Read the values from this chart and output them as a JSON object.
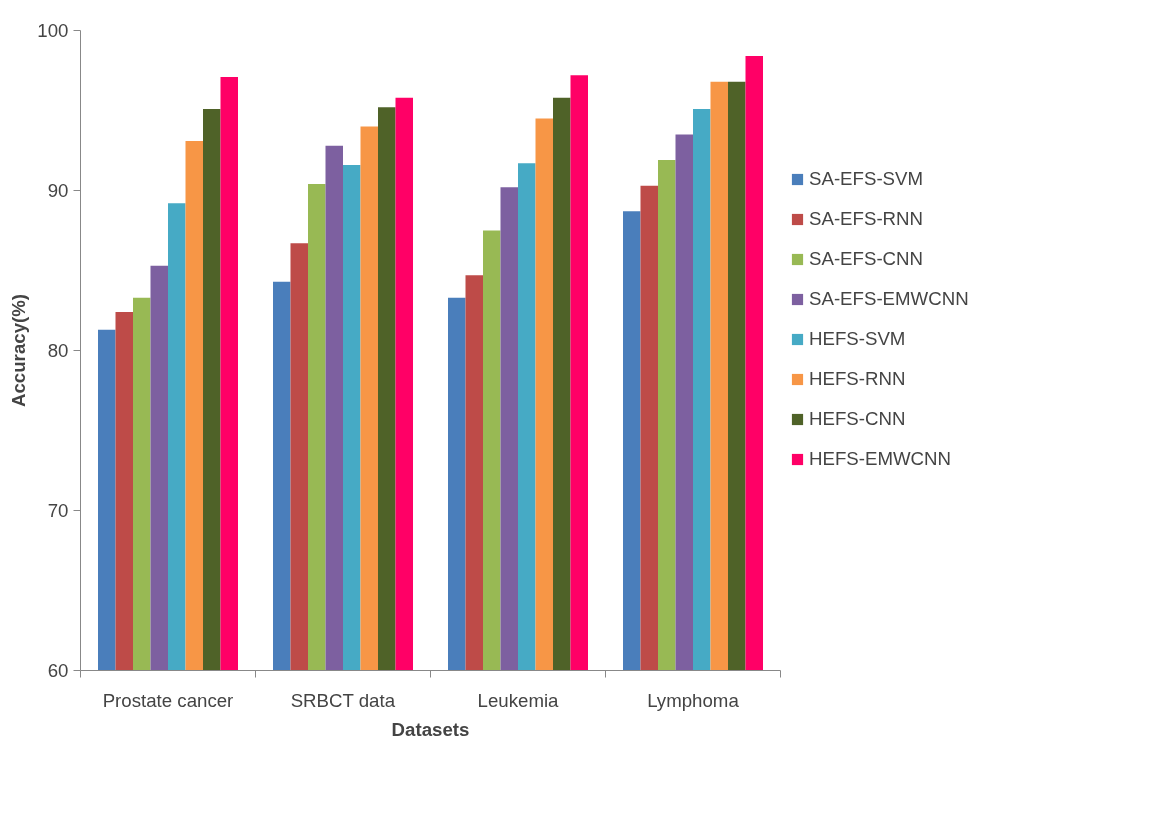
{
  "chart_data": {
    "type": "bar",
    "xlabel": "Datasets",
    "ylabel": "Accuracy(%)",
    "categories": [
      "Prostate cancer",
      "SRBCT data",
      "Leukemia",
      "Lymphoma"
    ],
    "ylim": [
      60,
      100
    ],
    "yticks": [
      60,
      70,
      80,
      90,
      100
    ],
    "grid": false,
    "legend": "right",
    "series": [
      {
        "name": "SA-EFS-SVM",
        "color": "#4a7ebb",
        "values": [
          81.3,
          84.3,
          83.3,
          88.7
        ]
      },
      {
        "name": "SA-EFS-RNN",
        "color": "#be4b48",
        "values": [
          82.4,
          86.7,
          84.7,
          90.3
        ]
      },
      {
        "name": "SA-EFS-CNN",
        "color": "#98b954",
        "values": [
          83.3,
          90.4,
          87.5,
          91.9
        ]
      },
      {
        "name": "SA-EFS-EMWCNN",
        "color": "#7d60a0",
        "values": [
          85.3,
          92.8,
          90.2,
          93.5
        ]
      },
      {
        "name": "HEFS-SVM",
        "color": "#46aac5",
        "values": [
          89.2,
          91.6,
          91.7,
          95.1
        ]
      },
      {
        "name": "HEFS-RNN",
        "color": "#f79646",
        "values": [
          93.1,
          94.0,
          94.5,
          96.8
        ]
      },
      {
        "name": "HEFS-CNN",
        "color": "#4f6228",
        "values": [
          95.1,
          95.2,
          95.8,
          96.8
        ]
      },
      {
        "name": "HEFS-EMWCNN",
        "color": "#ff0066",
        "values": [
          97.1,
          95.8,
          97.2,
          98.4
        ]
      }
    ]
  }
}
